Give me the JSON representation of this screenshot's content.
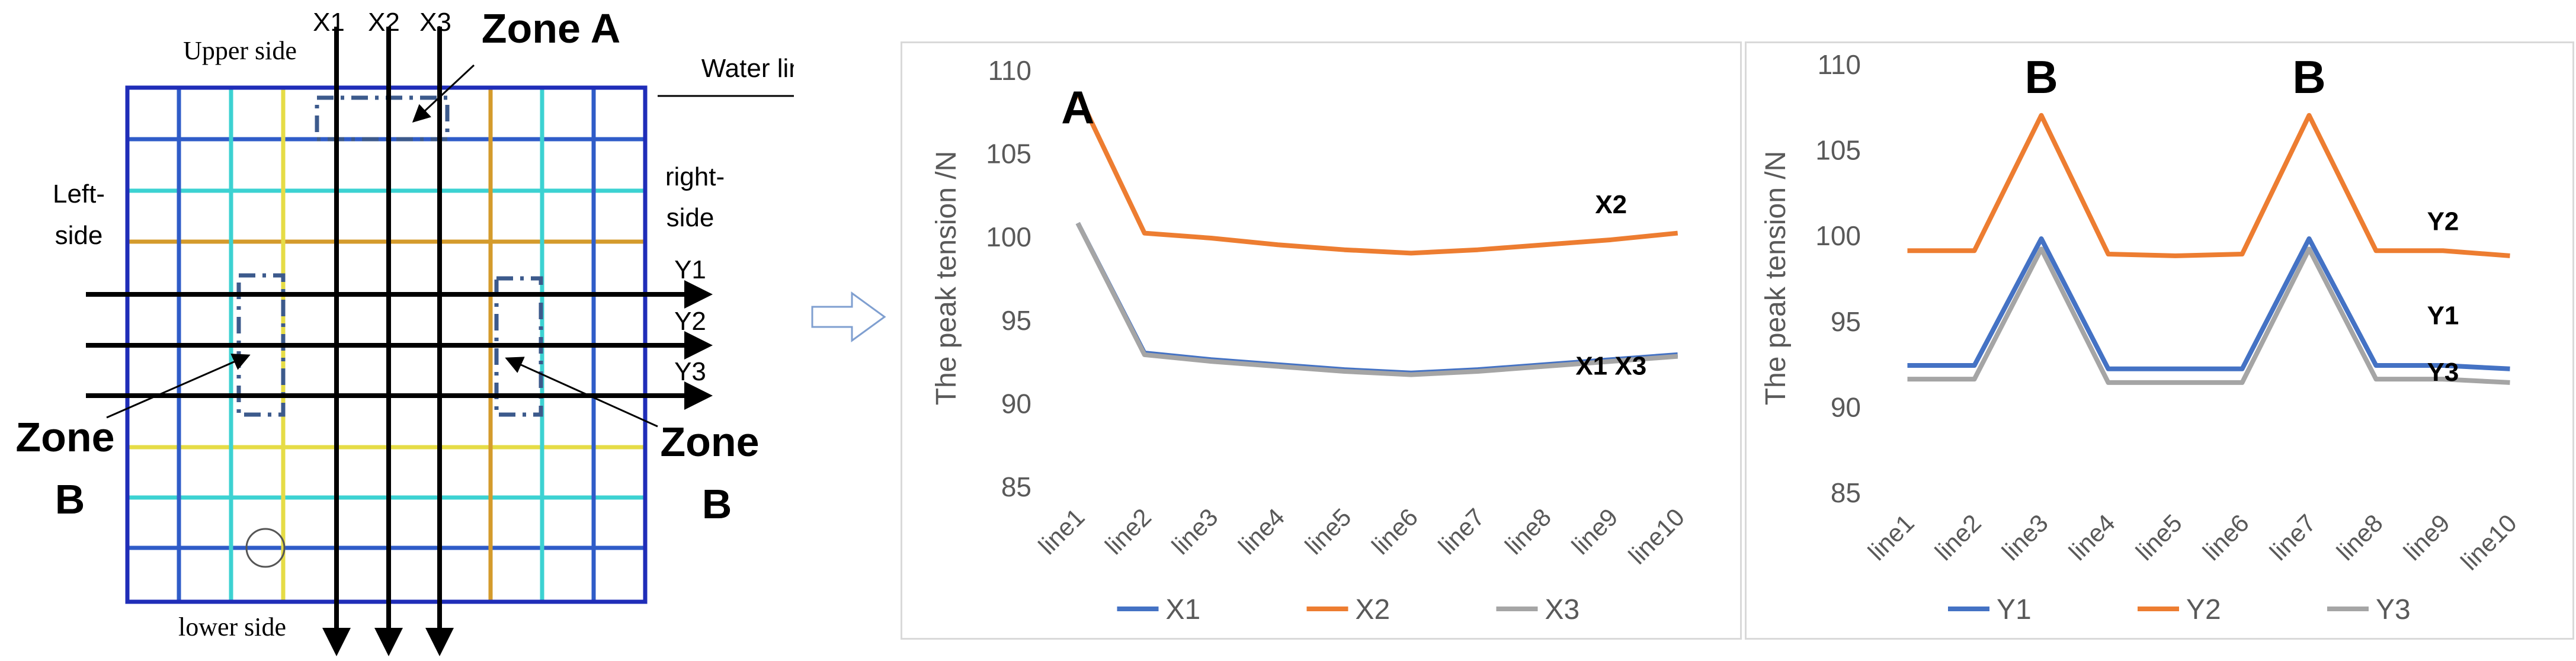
{
  "diagram": {
    "col_labels": [
      "X1",
      "X2",
      "X3"
    ],
    "row_labels": [
      "Y1",
      "Y2",
      "Y3"
    ],
    "upper_side": "Upper side",
    "lower_side": "lower side",
    "left_side": [
      "Left-",
      "side"
    ],
    "right_side": [
      "right-",
      "side"
    ],
    "water_line": "Water line",
    "zone_a": "Zone A",
    "zone_b_left": [
      "Zone",
      "B"
    ],
    "zone_b_right": [
      "Zone",
      "B"
    ],
    "colors": {
      "frame": "#1f2db8",
      "blue_line": "#2f5cc8",
      "cyan_line": "#3cd2d2",
      "yellow_line": "#e6dc46",
      "orange_line": "#d49b2c",
      "zone_box": "#3c5a8c"
    }
  },
  "chart_data": [
    {
      "type": "line",
      "categories": [
        "line1",
        "line2",
        "line3",
        "line4",
        "line5",
        "line6",
        "line7",
        "line8",
        "line9",
        "line10"
      ],
      "series": [
        {
          "name": "X1",
          "color": "#4472c4",
          "values": [
            100.8,
            93.0,
            92.6,
            92.3,
            92.0,
            91.8,
            92.0,
            92.3,
            92.6,
            92.9
          ]
        },
        {
          "name": "X2",
          "color": "#ed7d31",
          "values": [
            108.6,
            100.2,
            99.9,
            99.5,
            99.2,
            99.0,
            99.2,
            99.5,
            99.8,
            100.2
          ]
        },
        {
          "name": "X3",
          "color": "#a5a5a5",
          "values": [
            100.8,
            92.9,
            92.5,
            92.2,
            91.9,
            91.7,
            91.9,
            92.2,
            92.5,
            92.8
          ]
        }
      ],
      "ylabel": "The peak tension /N",
      "ylim": [
        85,
        110
      ],
      "yticks": [
        85,
        90,
        95,
        100,
        105,
        110
      ],
      "grid": false,
      "legend": "bottom",
      "annotations": [
        {
          "text": "A",
          "x": "line1",
          "y": 106.8,
          "size": "large"
        },
        {
          "text": "X2",
          "x": "line9",
          "y": 101.4,
          "size": "small"
        },
        {
          "text": "X1 X3",
          "x": "line9",
          "y": 91.7,
          "size": "small"
        }
      ]
    },
    {
      "type": "line",
      "categories": [
        "line1",
        "line2",
        "line3",
        "line4",
        "line5",
        "line6",
        "line7",
        "line8",
        "line9",
        "line10"
      ],
      "series": [
        {
          "name": "Y1",
          "color": "#4472c4",
          "values": [
            92.4,
            92.4,
            99.8,
            92.2,
            92.2,
            92.2,
            99.8,
            92.4,
            92.4,
            92.2
          ]
        },
        {
          "name": "Y2",
          "color": "#ed7d31",
          "values": [
            99.1,
            99.1,
            107.0,
            98.9,
            98.8,
            98.9,
            107.0,
            99.1,
            99.1,
            98.8
          ]
        },
        {
          "name": "Y3",
          "color": "#a5a5a5",
          "values": [
            91.6,
            91.6,
            99.2,
            91.4,
            91.4,
            91.4,
            99.2,
            91.6,
            91.6,
            91.4
          ]
        }
      ],
      "ylabel": "The peak tension /N",
      "ylim": [
        85,
        110
      ],
      "yticks": [
        85,
        90,
        95,
        100,
        105,
        110
      ],
      "grid": false,
      "legend": "bottom",
      "annotations": [
        {
          "text": "B",
          "x": "line3",
          "y": 108.3,
          "size": "large"
        },
        {
          "text": "B",
          "x": "line7",
          "y": 108.3,
          "size": "large"
        },
        {
          "text": "Y2",
          "x": "line9",
          "y": 100.3,
          "size": "small"
        },
        {
          "text": "Y1",
          "x": "line9",
          "y": 94.8,
          "size": "small"
        },
        {
          "text": "Y3",
          "x": "line9",
          "y": 91.5,
          "size": "small"
        }
      ]
    }
  ]
}
